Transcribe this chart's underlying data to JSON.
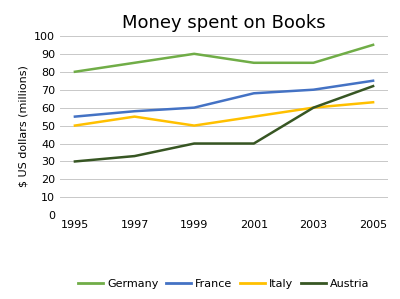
{
  "title": "Money spent on Books",
  "ylabel": "$ US dollars (millions)",
  "years": [
    1995,
    1997,
    1999,
    2001,
    2003,
    2005
  ],
  "series": {
    "Germany": {
      "values": [
        80,
        85,
        90,
        85,
        85,
        95
      ],
      "color": "#70ad47",
      "linewidth": 1.8
    },
    "France": {
      "values": [
        55,
        58,
        60,
        68,
        70,
        75
      ],
      "color": "#4472c4",
      "linewidth": 1.8
    },
    "Italy": {
      "values": [
        50,
        55,
        50,
        55,
        60,
        63
      ],
      "color": "#ffc000",
      "linewidth": 1.8
    },
    "Austria": {
      "values": [
        30,
        33,
        40,
        40,
        60,
        72
      ],
      "color": "#375623",
      "linewidth": 1.8
    }
  },
  "ylim": [
    0,
    100
  ],
  "yticks": [
    0,
    10,
    20,
    30,
    40,
    50,
    60,
    70,
    80,
    90,
    100
  ],
  "xticks": [
    1995,
    1997,
    1999,
    2001,
    2003,
    2005
  ],
  "legend_order": [
    "Germany",
    "France",
    "Italy",
    "Austria"
  ],
  "title_fontsize": 13,
  "axis_label_fontsize": 8,
  "tick_fontsize": 8,
  "legend_fontsize": 8,
  "background_color": "#ffffff",
  "grid_color": "#c8c8c8"
}
